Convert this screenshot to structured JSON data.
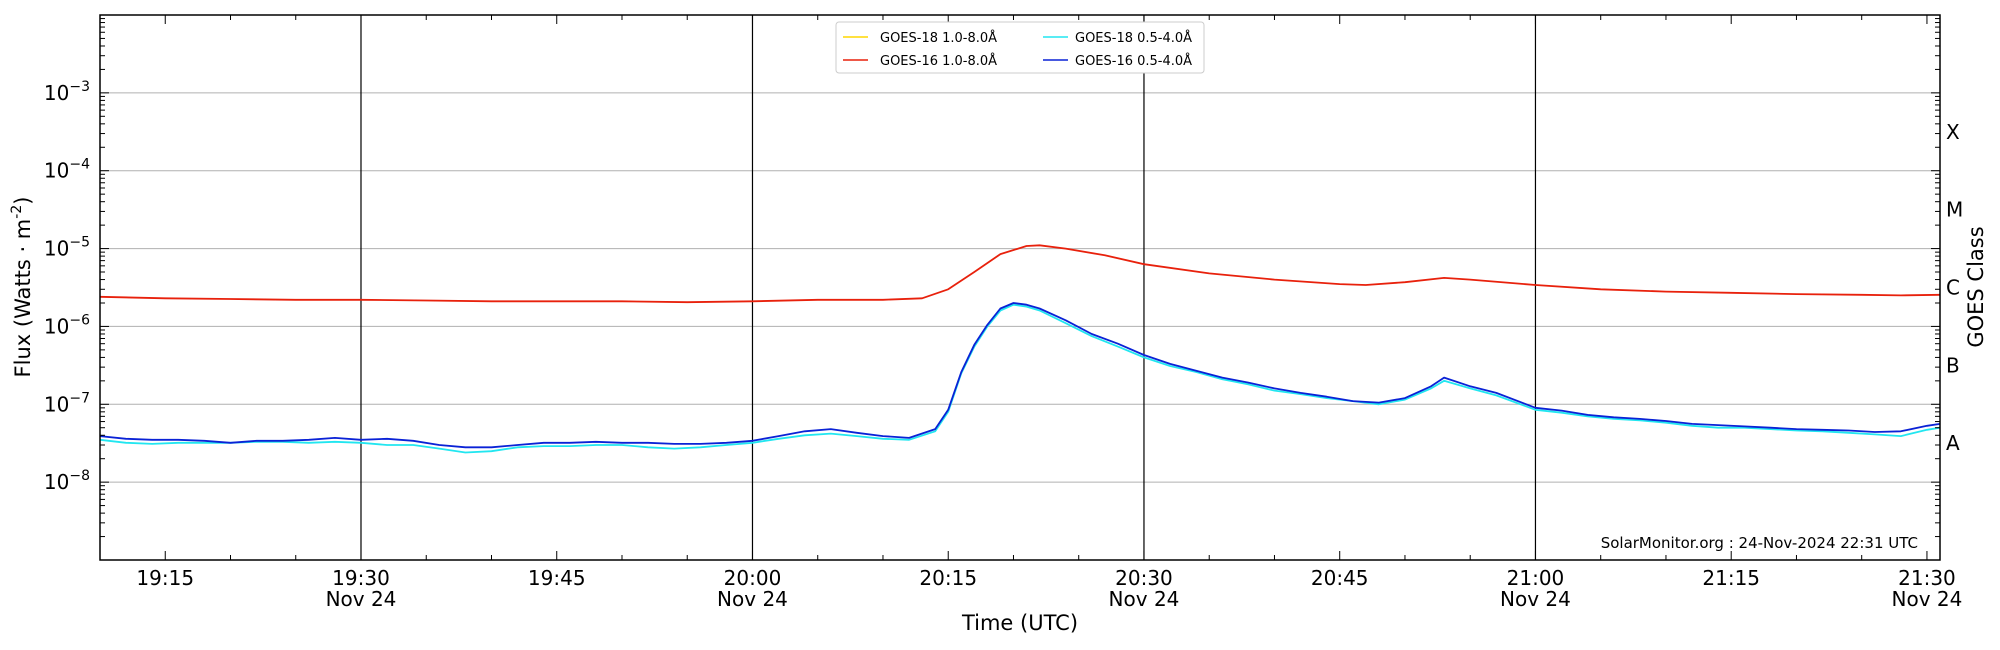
{
  "chart_data": {
    "type": "line",
    "xlabel": "Time (UTC)",
    "ylabel": "Flux (Watts · m",
    "ylabel_sup": "-2",
    "ylabel_end": ")",
    "y2label": "GOES Class",
    "yscale": "log",
    "xlim": [
      "19:10",
      "21:31"
    ],
    "ylim": [
      1e-09,
      0.01
    ],
    "x_ticks": [
      {
        "time": "19:15",
        "label": "19:15",
        "sub": ""
      },
      {
        "time": "19:30",
        "label": "19:30",
        "sub": "Nov 24"
      },
      {
        "time": "19:45",
        "label": "19:45",
        "sub": ""
      },
      {
        "time": "20:00",
        "label": "20:00",
        "sub": "Nov 24"
      },
      {
        "time": "20:15",
        "label": "20:15",
        "sub": ""
      },
      {
        "time": "20:30",
        "label": "20:30",
        "sub": "Nov 24"
      },
      {
        "time": "20:45",
        "label": "20:45",
        "sub": ""
      },
      {
        "time": "21:00",
        "label": "21:00",
        "sub": "Nov 24"
      },
      {
        "time": "21:15",
        "label": "21:15",
        "sub": ""
      },
      {
        "time": "21:30",
        "label": "21:30",
        "sub": "Nov 24"
      }
    ],
    "y_ticks": [
      {
        "value": 1e-08,
        "label": "10",
        "exp": "−8"
      },
      {
        "value": 1e-07,
        "label": "10",
        "exp": "−7"
      },
      {
        "value": 1e-06,
        "label": "10",
        "exp": "−6"
      },
      {
        "value": 1e-05,
        "label": "10",
        "exp": "−5"
      },
      {
        "value": 0.0001,
        "label": "10",
        "exp": "−4"
      },
      {
        "value": 0.001,
        "label": "10",
        "exp": "−3"
      }
    ],
    "goes_classes": [
      {
        "label": "A",
        "value": 1e-08
      },
      {
        "label": "B",
        "value": 1e-07
      },
      {
        "label": "C",
        "value": 1e-06
      },
      {
        "label": "M",
        "value": 1e-05
      },
      {
        "label": "X",
        "value": 0.0001
      }
    ],
    "vertical_lines": [
      "19:30",
      "20:00",
      "20:30",
      "21:00"
    ],
    "grid": true,
    "legend_position": "top-center",
    "annotation": "SolarMonitor.org : 24-Nov-2024 22:31 UTC",
    "series": [
      {
        "name": "GOES-18 1.0-8.0Å",
        "color": "#ffd700",
        "x": [],
        "y": []
      },
      {
        "name": "GOES-18 0.5-4.0Å",
        "color": "#22e6f0",
        "x": [
          "19:10",
          "19:12",
          "19:14",
          "19:16",
          "19:18",
          "19:20",
          "19:22",
          "19:24",
          "19:26",
          "19:28",
          "19:30",
          "19:32",
          "19:34",
          "19:36",
          "19:38",
          "19:40",
          "19:42",
          "19:44",
          "19:46",
          "19:48",
          "19:50",
          "19:52",
          "19:54",
          "19:56",
          "19:58",
          "20:00",
          "20:02",
          "20:04",
          "20:06",
          "20:08",
          "20:10",
          "20:12",
          "20:14",
          "20:15",
          "20:16",
          "20:17",
          "20:18",
          "20:19",
          "20:20",
          "20:21",
          "20:22",
          "20:24",
          "20:26",
          "20:28",
          "20:30",
          "20:32",
          "20:34",
          "20:36",
          "20:38",
          "20:40",
          "20:42",
          "20:44",
          "20:46",
          "20:48",
          "20:50",
          "20:52",
          "20:53",
          "20:55",
          "20:57",
          "21:00",
          "21:02",
          "21:04",
          "21:06",
          "21:08",
          "21:10",
          "21:12",
          "21:14",
          "21:16",
          "21:18",
          "21:20",
          "21:22",
          "21:24",
          "21:26",
          "21:28",
          "21:30",
          "21:31"
        ],
        "y": [
          3.5e-08,
          3.2e-08,
          3.1e-08,
          3.2e-08,
          3.2e-08,
          3.2e-08,
          3.3e-08,
          3.3e-08,
          3.2e-08,
          3.3e-08,
          3.2e-08,
          3e-08,
          3e-08,
          2.7e-08,
          2.4e-08,
          2.5e-08,
          2.8e-08,
          2.9e-08,
          2.9e-08,
          3e-08,
          3e-08,
          2.8e-08,
          2.7e-08,
          2.8e-08,
          3e-08,
          3.2e-08,
          3.6e-08,
          4e-08,
          4.2e-08,
          3.9e-08,
          3.6e-08,
          3.5e-08,
          4.5e-08,
          8e-08,
          2.5e-07,
          5.5e-07,
          1e-06,
          1.6e-06,
          1.9e-06,
          1.8e-06,
          1.6e-06,
          1.1e-06,
          7.5e-07,
          5.5e-07,
          4e-07,
          3.1e-07,
          2.6e-07,
          2.1e-07,
          1.8e-07,
          1.5e-07,
          1.35e-07,
          1.2e-07,
          1.1e-07,
          1e-07,
          1.15e-07,
          1.6e-07,
          2e-07,
          1.6e-07,
          1.3e-07,
          8.5e-08,
          7.8e-08,
          7e-08,
          6.5e-08,
          6.2e-08,
          5.8e-08,
          5.3e-08,
          5e-08,
          5e-08,
          4.8e-08,
          4.6e-08,
          4.5e-08,
          4.3e-08,
          4.1e-08,
          3.9e-08,
          4.7e-08,
          5e-08
        ]
      },
      {
        "name": "GOES-16 1.0-8.0Å",
        "color": "#e8210c",
        "x": [
          "19:10",
          "19:15",
          "19:20",
          "19:25",
          "19:30",
          "19:35",
          "19:40",
          "19:45",
          "19:50",
          "19:55",
          "20:00",
          "20:05",
          "20:10",
          "20:13",
          "20:15",
          "20:17",
          "20:19",
          "20:21",
          "20:22",
          "20:24",
          "20:27",
          "20:30",
          "20:35",
          "20:40",
          "20:45",
          "20:47",
          "20:50",
          "20:53",
          "20:55",
          "21:00",
          "21:05",
          "21:10",
          "21:15",
          "21:20",
          "21:25",
          "21:28",
          "21:31"
        ],
        "y": [
          2.4e-06,
          2.3e-06,
          2.25e-06,
          2.2e-06,
          2.2e-06,
          2.15e-06,
          2.1e-06,
          2.1e-06,
          2.1e-06,
          2.05e-06,
          2.1e-06,
          2.2e-06,
          2.2e-06,
          2.3e-06,
          3e-06,
          5e-06,
          8.5e-06,
          1.08e-05,
          1.1e-05,
          1e-05,
          8.2e-06,
          6.3e-06,
          4.8e-06,
          4e-06,
          3.5e-06,
          3.4e-06,
          3.7e-06,
          4.2e-06,
          4e-06,
          3.4e-06,
          3e-06,
          2.8e-06,
          2.7e-06,
          2.6e-06,
          2.55e-06,
          2.5e-06,
          2.55e-06
        ]
      },
      {
        "name": "GOES-16 0.5-4.0Å",
        "color": "#0a22d6",
        "x": [
          "19:10",
          "19:12",
          "19:14",
          "19:16",
          "19:18",
          "19:20",
          "19:22",
          "19:24",
          "19:26",
          "19:28",
          "19:30",
          "19:32",
          "19:34",
          "19:36",
          "19:38",
          "19:40",
          "19:42",
          "19:44",
          "19:46",
          "19:48",
          "19:50",
          "19:52",
          "19:54",
          "19:56",
          "19:58",
          "20:00",
          "20:02",
          "20:04",
          "20:06",
          "20:08",
          "20:10",
          "20:12",
          "20:14",
          "20:15",
          "20:16",
          "20:17",
          "20:18",
          "20:19",
          "20:20",
          "20:21",
          "20:22",
          "20:24",
          "20:26",
          "20:28",
          "20:30",
          "20:32",
          "20:34",
          "20:36",
          "20:38",
          "20:40",
          "20:42",
          "20:44",
          "20:46",
          "20:48",
          "20:50",
          "20:52",
          "20:53",
          "20:55",
          "20:57",
          "21:00",
          "21:02",
          "21:04",
          "21:06",
          "21:08",
          "21:10",
          "21:12",
          "21:14",
          "21:16",
          "21:18",
          "21:20",
          "21:22",
          "21:24",
          "21:26",
          "21:28",
          "21:30",
          "21:31"
        ],
        "y": [
          3.9e-08,
          3.6e-08,
          3.5e-08,
          3.5e-08,
          3.4e-08,
          3.2e-08,
          3.4e-08,
          3.4e-08,
          3.5e-08,
          3.7e-08,
          3.5e-08,
          3.6e-08,
          3.4e-08,
          3e-08,
          2.8e-08,
          2.8e-08,
          3e-08,
          3.2e-08,
          3.2e-08,
          3.3e-08,
          3.2e-08,
          3.2e-08,
          3.1e-08,
          3.1e-08,
          3.2e-08,
          3.4e-08,
          3.9e-08,
          4.5e-08,
          4.8e-08,
          4.3e-08,
          3.9e-08,
          3.7e-08,
          4.8e-08,
          8.5e-08,
          2.6e-07,
          5.8e-07,
          1.05e-06,
          1.7e-06,
          2e-06,
          1.9e-06,
          1.7e-06,
          1.2e-06,
          8e-07,
          6e-07,
          4.3e-07,
          3.3e-07,
          2.7e-07,
          2.2e-07,
          1.9e-07,
          1.6e-07,
          1.4e-07,
          1.25e-07,
          1.1e-07,
          1.05e-07,
          1.2e-07,
          1.7e-07,
          2.2e-07,
          1.7e-07,
          1.4e-07,
          9e-08,
          8.3e-08,
          7.3e-08,
          6.8e-08,
          6.5e-08,
          6.1e-08,
          5.6e-08,
          5.4e-08,
          5.2e-08,
          5e-08,
          4.8e-08,
          4.7e-08,
          4.6e-08,
          4.4e-08,
          4.5e-08,
          5.3e-08,
          5.6e-08
        ]
      }
    ]
  }
}
